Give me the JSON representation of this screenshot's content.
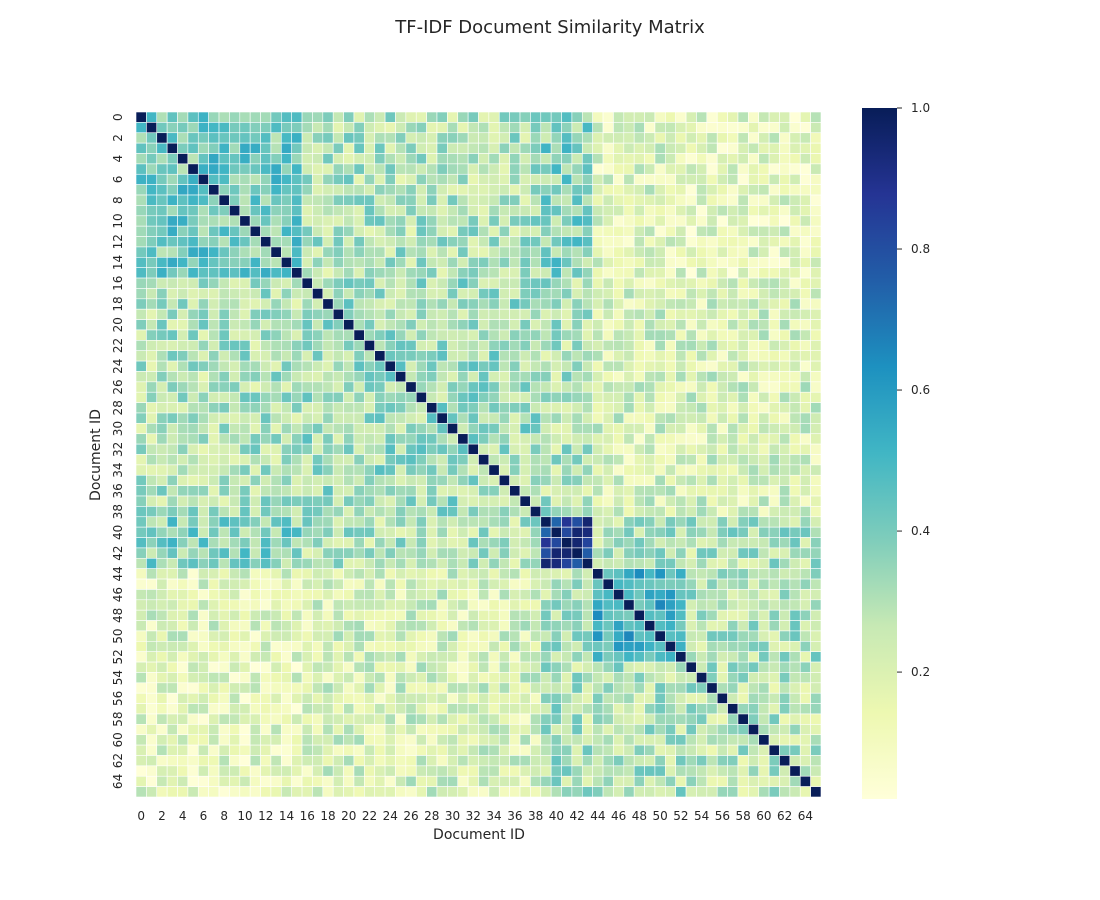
{
  "chart_data": {
    "type": "heatmap",
    "title": "TF-IDF Document Similarity Matrix",
    "xlabel": "Document ID",
    "ylabel": "Document ID",
    "n_docs": 66,
    "x_tick_labels": [
      "0",
      "2",
      "4",
      "6",
      "8",
      "10",
      "12",
      "14",
      "16",
      "18",
      "20",
      "22",
      "24",
      "26",
      "28",
      "30",
      "32",
      "34",
      "36",
      "38",
      "40",
      "42",
      "44",
      "46",
      "48",
      "50",
      "52",
      "54",
      "56",
      "58",
      "60",
      "62",
      "64"
    ],
    "y_tick_labels": [
      "0",
      "2",
      "4",
      "6",
      "8",
      "10",
      "12",
      "14",
      "16",
      "18",
      "20",
      "22",
      "24",
      "26",
      "28",
      "30",
      "32",
      "34",
      "36",
      "38",
      "40",
      "42",
      "44",
      "46",
      "48",
      "50",
      "52",
      "54",
      "56",
      "58",
      "60",
      "62",
      "64"
    ],
    "colormap": "YlGnBu",
    "colormap_stops": [
      "#ffffd9",
      "#edf8b1",
      "#c7e9b4",
      "#7fcdbb",
      "#41b6c4",
      "#1d91c0",
      "#225ea8",
      "#253494",
      "#081d58"
    ],
    "value_range": [
      0.02,
      1.0
    ],
    "colorbar_ticks": [
      "0.2",
      "0.4",
      "0.6",
      "0.8",
      "1.0"
    ],
    "colorbar_tick_values": [
      0.2,
      0.4,
      0.6,
      0.8,
      1.0
    ],
    "diagonal_value": 1.0,
    "clusters": [
      {
        "docs_from": 0,
        "docs_to": 15,
        "within_similarity": 0.42
      },
      {
        "docs_from": 16,
        "docs_to": 38,
        "within_similarity": 0.33
      },
      {
        "docs_from": 39,
        "docs_to": 43,
        "within_similarity": 0.85
      },
      {
        "docs_from": 44,
        "docs_to": 52,
        "within_similarity": 0.52
      },
      {
        "docs_from": 53,
        "docs_to": 65,
        "within_similarity": 0.28
      }
    ],
    "cross_cluster_similarity": [
      [
        0.42,
        0.3,
        0.38,
        0.18,
        0.16
      ],
      [
        0.3,
        0.33,
        0.3,
        0.2,
        0.2
      ],
      [
        0.38,
        0.3,
        0.85,
        0.3,
        0.3
      ],
      [
        0.18,
        0.2,
        0.3,
        0.52,
        0.3
      ],
      [
        0.16,
        0.2,
        0.3,
        0.3,
        0.28
      ]
    ],
    "grid": false,
    "legend": "colorbar-right"
  }
}
